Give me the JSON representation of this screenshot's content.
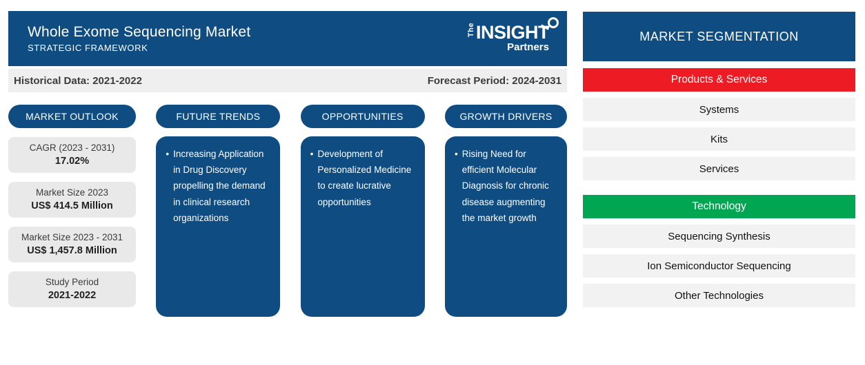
{
  "header": {
    "title": "Whole Exome Sequencing Market",
    "subtitle": "STRATEGIC FRAMEWORK",
    "logo": {
      "the": "The",
      "insight": "INSIGHT",
      "partners": "Partners"
    }
  },
  "period_bar": {
    "historical": "Historical Data: 2021-2022",
    "forecast": "Forecast Period: 2024-2031"
  },
  "columns": {
    "market_outlook": {
      "title": "MARKET OUTLOOK",
      "stats": [
        {
          "label": "CAGR (2023 - 2031)",
          "value": "17.02%"
        },
        {
          "label": "Market Size 2023",
          "value": "US$ 414.5 Million"
        },
        {
          "label": "Market Size 2023 - 2031",
          "value": "US$ 1,457.8 Million"
        },
        {
          "label": "Study Period",
          "value": "2021-2022"
        }
      ]
    },
    "future_trends": {
      "title": "FUTURE TRENDS",
      "bullets": [
        "Increasing Application in Drug Discovery propelling the demand in clinical research organizations"
      ]
    },
    "opportunities": {
      "title": "OPPORTUNITIES",
      "bullets": [
        "Development of Personalized Medicine to create lucrative opportunities"
      ]
    },
    "growth_drivers": {
      "title": "GROWTH DRIVERS",
      "bullets": [
        "Rising Need for efficient Molecular Diagnosis for chronic disease augmenting the market growth"
      ]
    }
  },
  "segmentation": {
    "title": "MARKET SEGMENTATION",
    "groups": [
      {
        "name": "Products & Services",
        "color": "#ED1C24",
        "items": [
          "Systems",
          "Kits",
          "Services"
        ]
      },
      {
        "name": "Technology",
        "color": "#00A651",
        "items": [
          "Sequencing Synthesis",
          "Ion Semiconductor Sequencing",
          "Other Technologies"
        ]
      }
    ]
  },
  "colors": {
    "brand_blue": "#0E4C81",
    "accent_red": "#ED1C24",
    "accent_green": "#00A651",
    "strip_gray": "#EFEFEF",
    "stat_box_gray": "#E9E9E9",
    "row_gray": "#F2F2F2"
  }
}
